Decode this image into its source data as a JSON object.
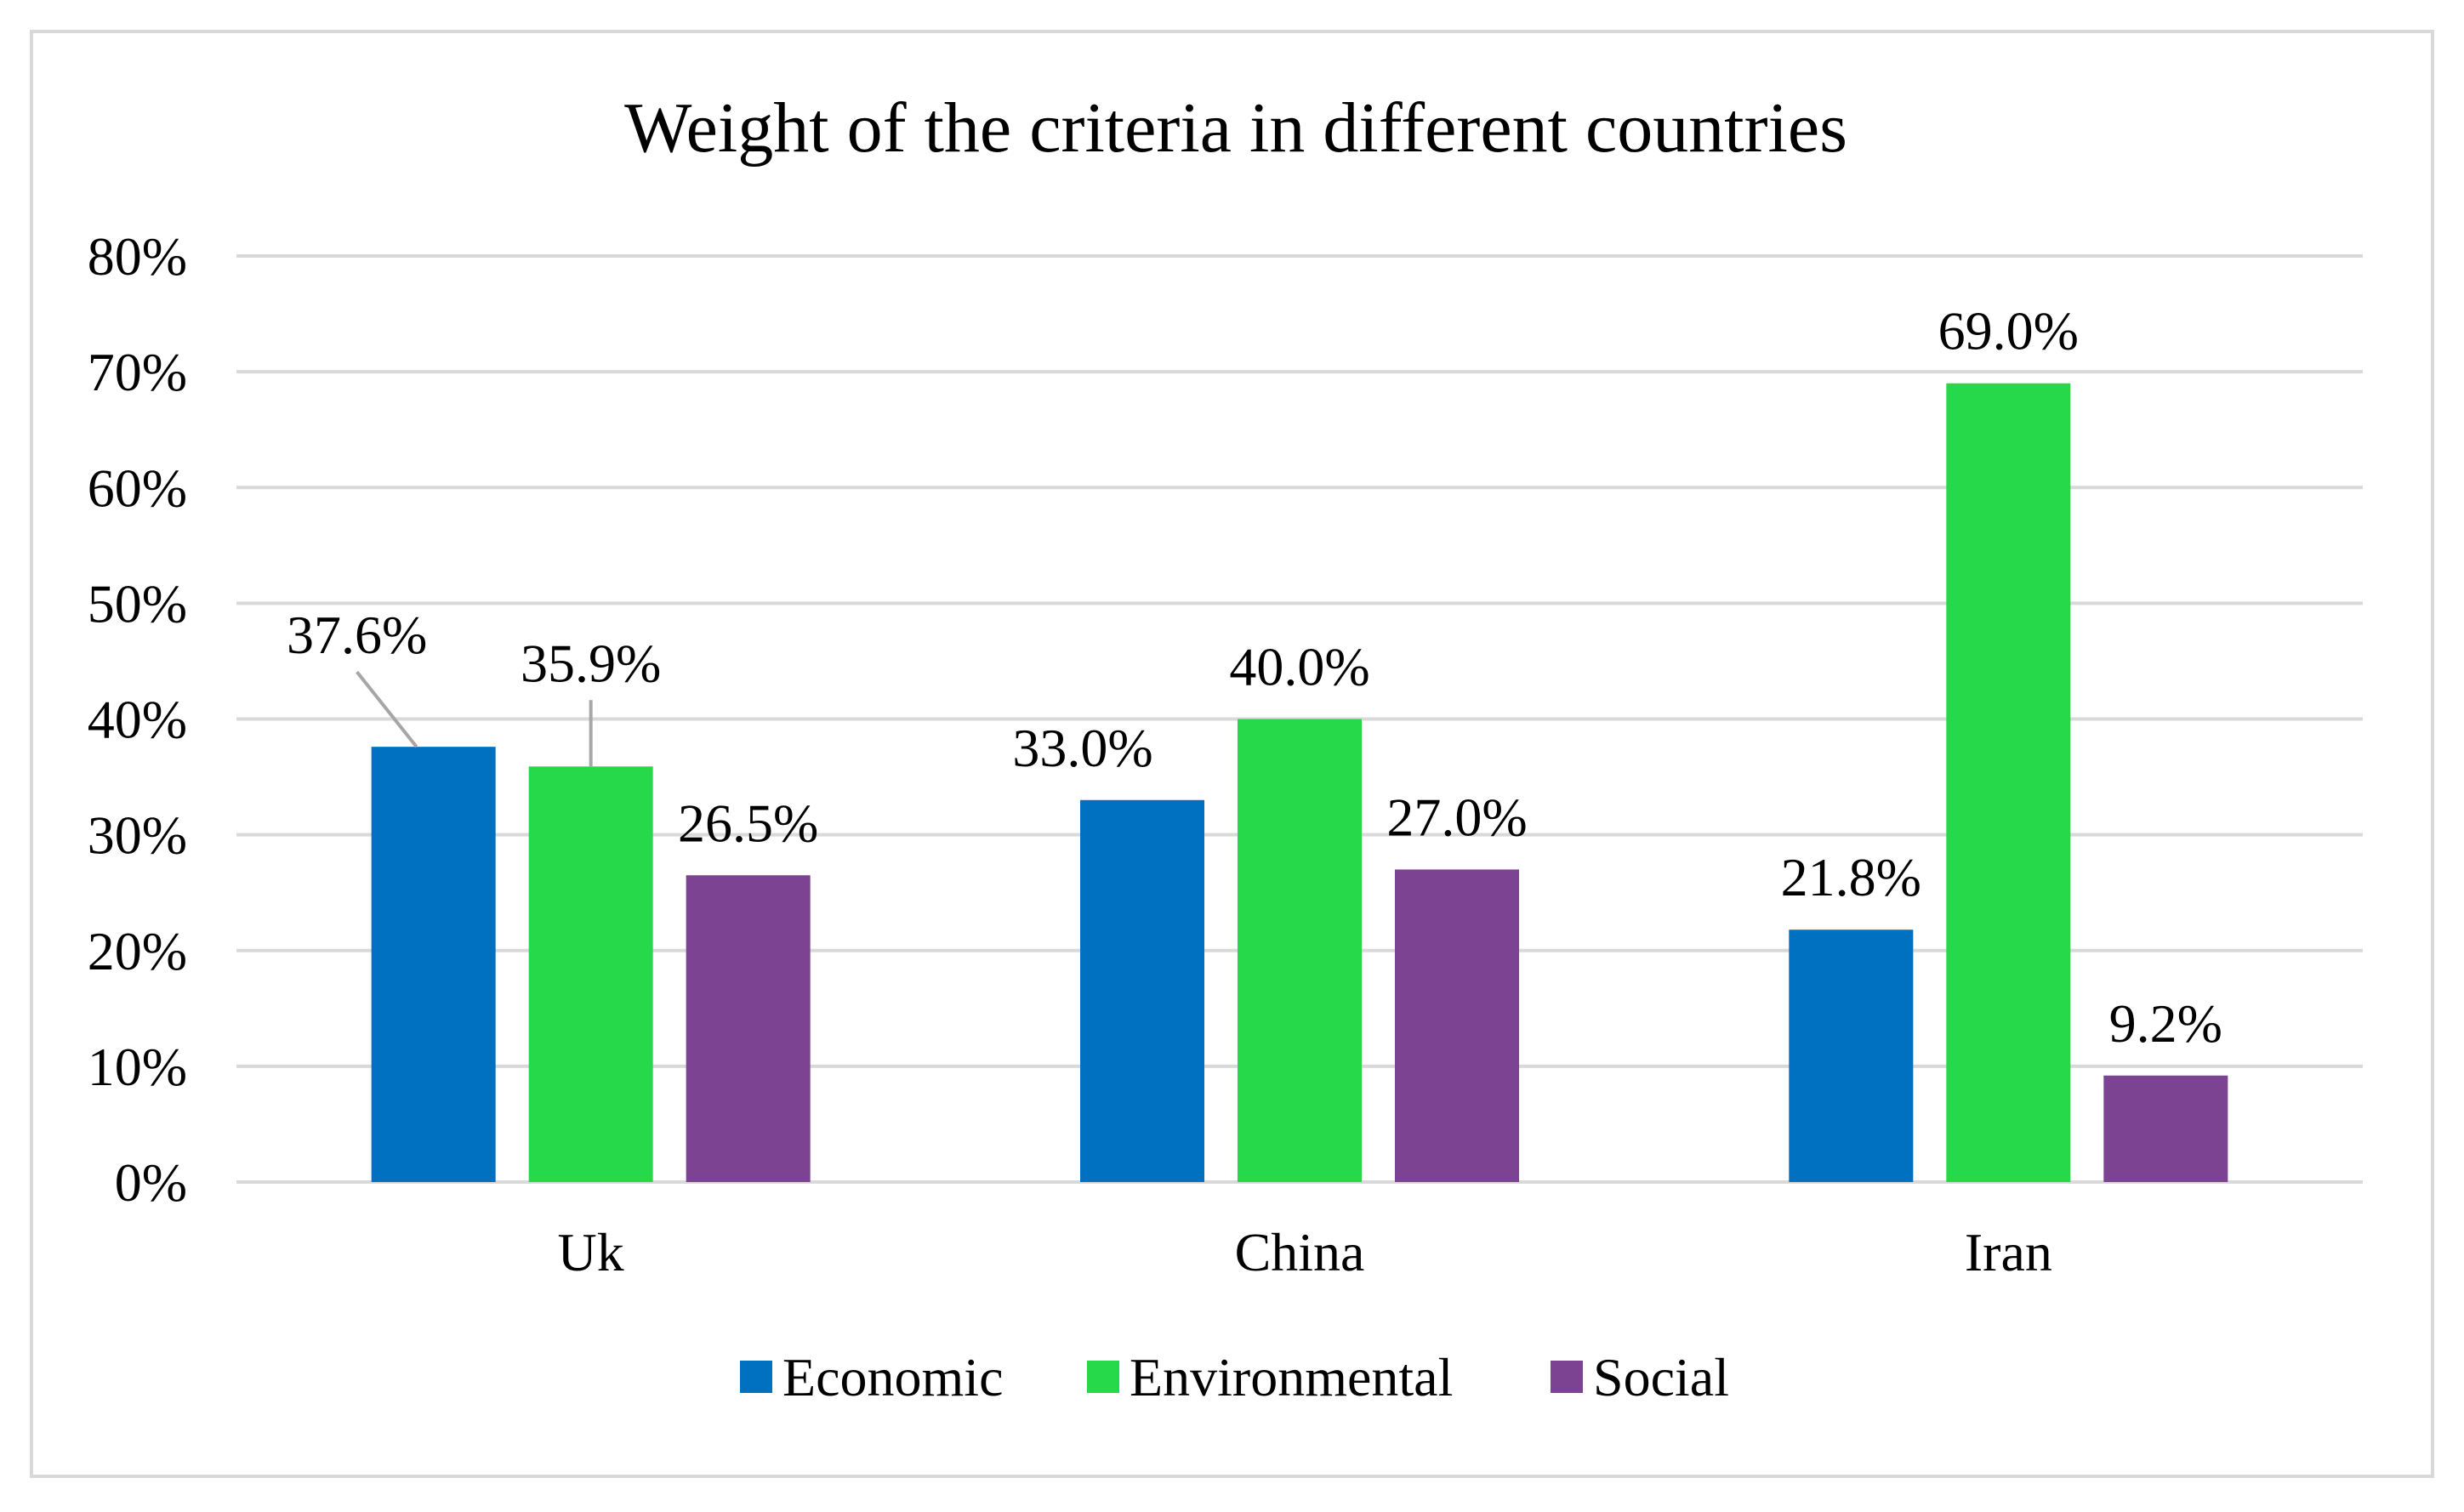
{
  "colors": {
    "Economic": "#0070C0",
    "Environmental": "#25D94A",
    "Social": "#7B4391",
    "gridline": "#D9D9D9",
    "frame": "#D9D9D9",
    "leader": "#A6A6A6"
  },
  "chart_data": {
    "type": "bar",
    "title": "Weight of the criteria in different countries",
    "xlabel": "",
    "ylabel": "",
    "categories": [
      "Uk",
      "China",
      "Iran"
    ],
    "series": [
      {
        "name": "Economic",
        "values": [
          37.6,
          33.0,
          21.8
        ],
        "labels": [
          "37.6%",
          "33.0%",
          "21.8%"
        ]
      },
      {
        "name": "Environmental",
        "values": [
          35.9,
          40.0,
          69.0
        ],
        "labels": [
          "35.9%",
          "40.0%",
          "69.0%"
        ]
      },
      {
        "name": "Social",
        "values": [
          26.5,
          27.0,
          9.2
        ],
        "labels": [
          "26.5%",
          "27.0%",
          "9.2%"
        ]
      }
    ],
    "ylim": [
      0,
      80
    ],
    "yticks": [
      0,
      10,
      20,
      30,
      40,
      50,
      60,
      70,
      80
    ],
    "ytick_labels": [
      "0%",
      "10%",
      "20%",
      "30%",
      "40%",
      "50%",
      "60%",
      "70%",
      "80%"
    ],
    "grid": true,
    "legend_position": "bottom"
  }
}
